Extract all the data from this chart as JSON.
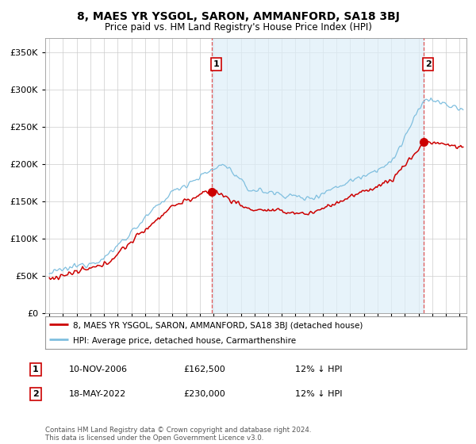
{
  "title": "8, MAES YR YSGOL, SARON, AMMANFORD, SA18 3BJ",
  "subtitle": "Price paid vs. HM Land Registry's House Price Index (HPI)",
  "ylim": [
    0,
    370000
  ],
  "yticks": [
    0,
    50000,
    100000,
    150000,
    200000,
    250000,
    300000,
    350000
  ],
  "ytick_labels": [
    "£0",
    "£50K",
    "£100K",
    "£150K",
    "£200K",
    "£250K",
    "£300K",
    "£350K"
  ],
  "xlim_start": 1994.7,
  "xlim_end": 2025.5,
  "sale1_date_x": 2006.87,
  "sale1_price": 162500,
  "sale2_date_x": 2022.38,
  "sale2_price": 230000,
  "legend_line1": "8, MAES YR YSGOL, SARON, AMMANFORD, SA18 3BJ (detached house)",
  "legend_line2": "HPI: Average price, detached house, Carmarthenshire",
  "annotation1_date": "10-NOV-2006",
  "annotation1_price": "£162,500",
  "annotation1_pct": "12% ↓ HPI",
  "annotation2_date": "18-MAY-2022",
  "annotation2_price": "£230,000",
  "annotation2_pct": "12% ↓ HPI",
  "footer": "Contains HM Land Registry data © Crown copyright and database right 2024.\nThis data is licensed under the Open Government Licence v3.0.",
  "hpi_color": "#7fbfdf",
  "hpi_fill_color": "#ddeef8",
  "sale_color": "#cc0000",
  "vline_color": "#dd4444",
  "background_color": "#ffffff",
  "grid_color": "#cccccc"
}
